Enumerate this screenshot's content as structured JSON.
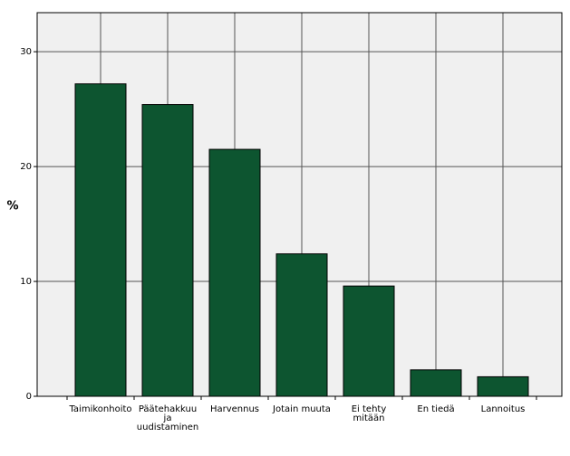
{
  "chart_data": {
    "type": "bar",
    "y_label": "%",
    "categories": [
      "Taimikonhoito",
      "Päätehakkuu ja uudistaminen",
      "Harvennus",
      "Jotain muuta",
      "Ei tehty mitään",
      "En tiedä",
      "Lannoitus"
    ],
    "values": [
      27.2,
      25.4,
      21.5,
      12.4,
      9.6,
      2.3,
      1.7
    ],
    "color": "#0d5530",
    "ylim": [
      0,
      33.4
    ],
    "yticks": [
      0,
      10,
      20,
      30
    ],
    "grid": true
  }
}
